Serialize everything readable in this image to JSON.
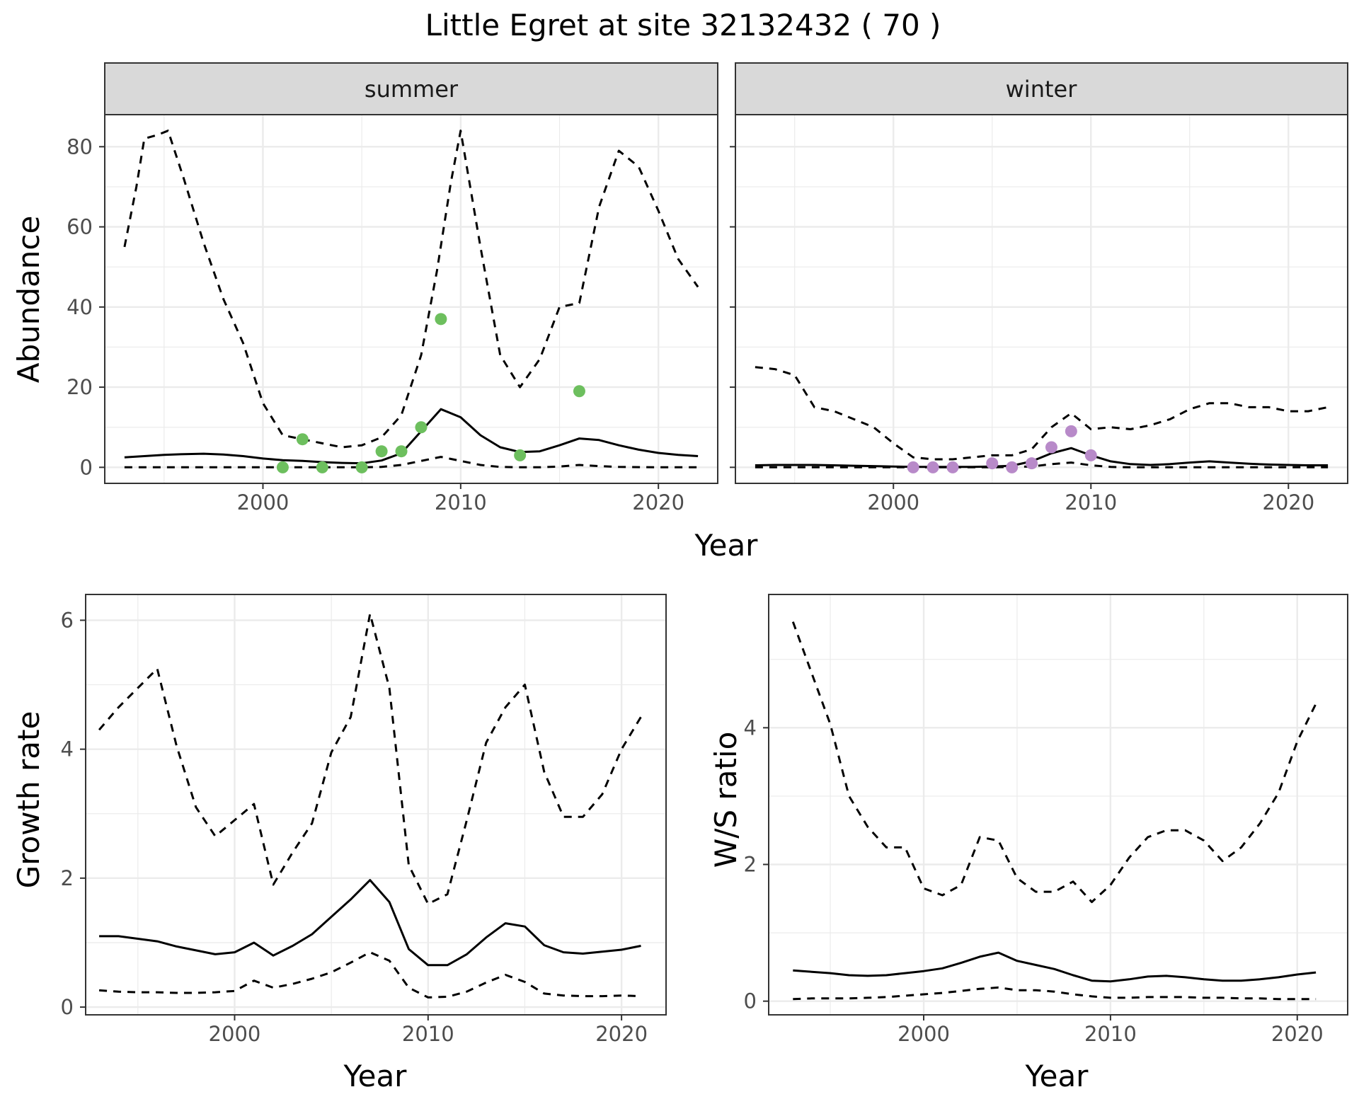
{
  "title": "Little Egret at site 32132432 ( 70 )",
  "colors": {
    "summer_points": "#6dbf5e",
    "winter_points": "#b88ac9",
    "line": "#000000",
    "strip_fill": "#d9d9d9",
    "grid_major": "#ebebeb",
    "panel_border": "#333333"
  },
  "chart_data": [
    {
      "type": "line",
      "panel": "summer",
      "xlabel": "Year",
      "ylabel": "Abundance",
      "xlim": [
        1992,
        2023
      ],
      "ylim": [
        -4,
        88
      ],
      "xticks": [
        2000,
        2010,
        2020
      ],
      "yticks": [
        0,
        20,
        40,
        60,
        80
      ],
      "series": [
        {
          "style": "solid",
          "x": [
            1993,
            1994,
            1995,
            1996,
            1997,
            1998,
            1999,
            2000,
            2001,
            2002,
            2003,
            2004,
            2005,
            2006,
            2007,
            2008,
            2009,
            2010,
            2011,
            2012,
            2013,
            2014,
            2015,
            2016,
            2017,
            2018,
            2019,
            2020,
            2021,
            2022
          ],
          "y": [
            2.5,
            2.8,
            3.1,
            3.3,
            3.4,
            3.2,
            2.8,
            2.2,
            1.8,
            1.6,
            1.3,
            1.1,
            1.0,
            1.7,
            3.5,
            9,
            14.5,
            12.5,
            8,
            5,
            3.8,
            4,
            5.5,
            7.2,
            6.8,
            5.5,
            4.4,
            3.6,
            3.1,
            2.8
          ]
        },
        {
          "style": "dashed",
          "x": [
            1993,
            1993.6,
            1994,
            1994.7,
            1995.2,
            1996,
            1997,
            1998,
            1999,
            2000,
            2001,
            2002,
            2003,
            2004,
            2005,
            2006,
            2007,
            2008,
            2008.8,
            2009.5,
            2010,
            2011,
            2012,
            2013,
            2014,
            2015,
            2016,
            2017,
            2018,
            2019,
            2020,
            2021,
            2022
          ],
          "y": [
            55,
            70,
            82,
            83,
            84,
            72,
            56,
            42,
            31,
            16,
            8,
            7,
            6,
            5,
            5.5,
            7.5,
            13,
            28,
            49,
            71,
            84,
            55,
            28,
            20,
            27,
            40,
            41,
            65,
            79,
            75,
            64,
            52,
            45
          ]
        },
        {
          "style": "dashed",
          "x": [
            1993,
            1996,
            1999,
            2002,
            2005,
            2006,
            2007,
            2008,
            2009,
            2010,
            2011,
            2012,
            2013,
            2014,
            2015,
            2016,
            2017,
            2018,
            2020,
            2022
          ],
          "y": [
            0,
            0,
            0,
            0,
            0,
            0.1,
            0.6,
            1.6,
            2.6,
            1.6,
            0.6,
            0.1,
            0,
            0,
            0.2,
            0.6,
            0.3,
            0.1,
            0,
            0
          ]
        }
      ],
      "points": {
        "x": [
          2001,
          2002,
          2003,
          2005,
          2006,
          2007,
          2008,
          2009,
          2013,
          2016
        ],
        "y": [
          0,
          7,
          0,
          0,
          4,
          4,
          10,
          37,
          3,
          19
        ]
      }
    },
    {
      "type": "line",
      "panel": "winter",
      "xlabel": "Year",
      "ylabel": "Abundance",
      "xlim": [
        1992,
        2023
      ],
      "ylim": [
        -4,
        88
      ],
      "xticks": [
        2000,
        2010,
        2020
      ],
      "yticks": [
        0,
        20,
        40,
        60,
        80
      ],
      "series": [
        {
          "style": "solid",
          "x": [
            1993,
            1994,
            1995,
            1996,
            1997,
            1998,
            1999,
            2000,
            2001,
            2002,
            2003,
            2004,
            2005,
            2006,
            2007,
            2008,
            2009,
            2010,
            2011,
            2012,
            2013,
            2014,
            2015,
            2016,
            2017,
            2018,
            2019,
            2020,
            2021,
            2022
          ],
          "y": [
            0.5,
            0.6,
            0.6,
            0.6,
            0.5,
            0.4,
            0.3,
            0.2,
            0.1,
            0.1,
            0.1,
            0.1,
            0.2,
            0.4,
            1.5,
            3.5,
            4.8,
            3,
            1.5,
            0.8,
            0.6,
            0.8,
            1.2,
            1.5,
            1.2,
            0.9,
            0.7,
            0.6,
            0.5,
            0.5
          ]
        },
        {
          "style": "dashed",
          "x": [
            1993,
            1994,
            1995,
            1996,
            1997,
            1998,
            1999,
            2000,
            2001,
            2002,
            2003,
            2004,
            2005,
            2006,
            2007,
            2008,
            2009,
            2010,
            2011,
            2012,
            2013,
            2014,
            2015,
            2016,
            2017,
            2018,
            2019,
            2020,
            2021,
            2022
          ],
          "y": [
            25,
            24.5,
            23,
            15,
            14,
            12,
            10,
            6,
            2.5,
            2,
            2,
            2.5,
            3,
            3,
            4.5,
            10,
            13.5,
            9.5,
            10,
            9.5,
            10.5,
            12,
            14.5,
            16,
            16,
            15,
            15,
            14,
            14,
            15
          ]
        },
        {
          "style": "dashed",
          "x": [
            1993,
            1996,
            1999,
            2002,
            2005,
            2007,
            2008,
            2009,
            2010,
            2011,
            2012,
            2015,
            2018,
            2022
          ],
          "y": [
            0,
            0,
            0,
            0,
            0,
            0.2,
            0.8,
            1.2,
            0.5,
            0.1,
            0,
            0,
            0,
            0
          ]
        }
      ],
      "points": {
        "x": [
          2001,
          2002,
          2003,
          2005,
          2006,
          2007,
          2008,
          2009,
          2010
        ],
        "y": [
          0,
          0,
          0,
          1,
          0,
          1,
          5,
          9,
          3
        ]
      }
    },
    {
      "type": "line",
      "panel": "growth",
      "xlabel": "Year",
      "ylabel": "Growth rate",
      "xlim": [
        1992.3,
        2022.3
      ],
      "ylim": [
        -0.12,
        6.4
      ],
      "xticks": [
        2000,
        2010,
        2020
      ],
      "yticks": [
        0,
        2,
        4,
        6
      ],
      "series": [
        {
          "style": "solid",
          "x": [
            1993,
            1994,
            1995,
            1996,
            1997,
            1998,
            1999,
            2000,
            2001,
            2002,
            2003,
            2004,
            2005,
            2006,
            2007,
            2008,
            2009,
            2010,
            2011,
            2012,
            2013,
            2014,
            2015,
            2016,
            2017,
            2018,
            2019,
            2020,
            2021
          ],
          "y": [
            1.1,
            1.1,
            1.06,
            1.02,
            0.94,
            0.88,
            0.82,
            0.85,
            1.0,
            0.8,
            0.95,
            1.13,
            1.4,
            1.67,
            1.97,
            1.63,
            0.9,
            0.65,
            0.65,
            0.82,
            1.08,
            1.3,
            1.25,
            0.96,
            0.85,
            0.83,
            0.86,
            0.89,
            0.95
          ]
        },
        {
          "style": "dashed",
          "x": [
            1993,
            1994,
            1995,
            1996,
            1997,
            1998,
            1999,
            2000,
            2001,
            2002,
            2003,
            2004,
            2005,
            2006,
            2007,
            2008,
            2009,
            2010,
            2011,
            2012,
            2013,
            2014,
            2015,
            2016,
            2017,
            2018,
            2019,
            2020,
            2021
          ],
          "y": [
            4.3,
            4.65,
            4.95,
            5.25,
            4.05,
            3.1,
            2.65,
            2.9,
            3.15,
            1.9,
            2.4,
            2.85,
            3.95,
            4.5,
            6.1,
            4.95,
            2.2,
            1.6,
            1.75,
            2.9,
            4.1,
            4.65,
            5.0,
            3.65,
            2.95,
            2.95,
            3.3,
            4.0,
            4.5
          ]
        },
        {
          "style": "dashed",
          "x": [
            1993,
            1994,
            1995,
            1996,
            1997,
            1998,
            1999,
            2000,
            2001,
            2002,
            2003,
            2004,
            2005,
            2006,
            2007,
            2008,
            2009,
            2010,
            2011,
            2012,
            2013,
            2014,
            2015,
            2016,
            2017,
            2018,
            2019,
            2020,
            2021
          ],
          "y": [
            0.26,
            0.24,
            0.23,
            0.23,
            0.22,
            0.22,
            0.23,
            0.25,
            0.41,
            0.3,
            0.36,
            0.44,
            0.54,
            0.69,
            0.85,
            0.72,
            0.3,
            0.15,
            0.16,
            0.24,
            0.38,
            0.5,
            0.39,
            0.21,
            0.18,
            0.17,
            0.17,
            0.18,
            0.17
          ]
        }
      ]
    },
    {
      "type": "line",
      "panel": "ws_ratio",
      "xlabel": "Year",
      "ylabel": "W/S ratio",
      "xlim": [
        1991.7,
        2022.7
      ],
      "ylim": [
        -0.2,
        5.95
      ],
      "xticks": [
        2000,
        2010,
        2020
      ],
      "yticks": [
        0,
        2,
        4
      ],
      "series": [
        {
          "style": "solid",
          "x": [
            1993,
            1994,
            1995,
            1996,
            1997,
            1998,
            1999,
            2000,
            2001,
            2002,
            2003,
            2004,
            2005,
            2006,
            2007,
            2008,
            2009,
            2010,
            2011,
            2012,
            2013,
            2014,
            2015,
            2016,
            2017,
            2018,
            2019,
            2020,
            2021
          ],
          "y": [
            0.45,
            0.43,
            0.41,
            0.38,
            0.37,
            0.38,
            0.41,
            0.44,
            0.48,
            0.56,
            0.65,
            0.71,
            0.59,
            0.53,
            0.47,
            0.38,
            0.3,
            0.29,
            0.32,
            0.36,
            0.37,
            0.35,
            0.32,
            0.3,
            0.3,
            0.32,
            0.35,
            0.39,
            0.42
          ]
        },
        {
          "style": "dashed",
          "x": [
            1993,
            1994,
            1995,
            1996,
            1997,
            1998,
            1999,
            2000,
            2001,
            2002,
            2003,
            2004,
            2005,
            2006,
            2007,
            2008,
            2009,
            2010,
            2011,
            2012,
            2013,
            2014,
            2015,
            2016,
            2017,
            2018,
            2019,
            2020,
            2021
          ],
          "y": [
            5.55,
            4.8,
            4.05,
            3.0,
            2.55,
            2.25,
            2.25,
            1.65,
            1.55,
            1.7,
            2.4,
            2.35,
            1.8,
            1.6,
            1.6,
            1.75,
            1.45,
            1.7,
            2.1,
            2.4,
            2.5,
            2.5,
            2.35,
            2.05,
            2.25,
            2.6,
            3.05,
            3.8,
            4.35
          ]
        },
        {
          "style": "dashed",
          "x": [
            1993,
            1994,
            1995,
            1996,
            1997,
            1998,
            1999,
            2000,
            2001,
            2002,
            2003,
            2004,
            2005,
            2006,
            2007,
            2008,
            2009,
            2010,
            2011,
            2012,
            2013,
            2014,
            2015,
            2016,
            2017,
            2018,
            2019,
            2020,
            2021
          ],
          "y": [
            0.03,
            0.04,
            0.04,
            0.04,
            0.05,
            0.06,
            0.08,
            0.1,
            0.12,
            0.15,
            0.18,
            0.2,
            0.16,
            0.16,
            0.14,
            0.1,
            0.07,
            0.05,
            0.05,
            0.06,
            0.06,
            0.06,
            0.05,
            0.05,
            0.04,
            0.04,
            0.03,
            0.03,
            0.03
          ]
        }
      ]
    }
  ],
  "strips": {
    "summer": "summer",
    "winter": "winter"
  },
  "labels": {
    "abundance_ylabel": "Abundance",
    "top_xlabel": "Year",
    "growth_ylabel": "Growth rate",
    "growth_xlabel": "Year",
    "ws_ylabel": "W/S ratio",
    "ws_xlabel": "Year"
  }
}
